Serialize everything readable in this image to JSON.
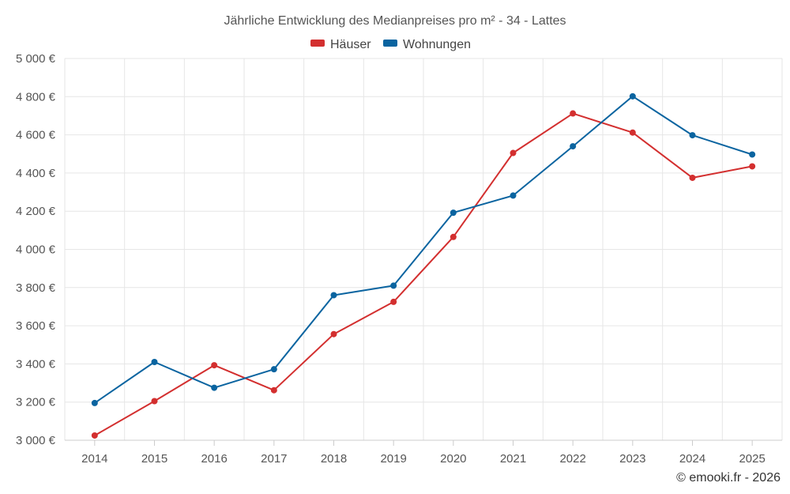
{
  "chart_data": {
    "type": "line",
    "title": "Jährliche Entwicklung des Medianpreises pro m² - 34 - Lattes",
    "categories": [
      "2014",
      "2015",
      "2016",
      "2017",
      "2018",
      "2019",
      "2020",
      "2021",
      "2022",
      "2023",
      "2024",
      "2025"
    ],
    "series": [
      {
        "name": "Häuser",
        "color": "#d32f2f",
        "values": [
          3025,
          3205,
          3393,
          3262,
          3556,
          3725,
          4065,
          4505,
          4712,
          4612,
          4375,
          4435
        ]
      },
      {
        "name": "Wohnungen",
        "color": "#0a64a0",
        "values": [
          3195,
          3410,
          3275,
          3372,
          3760,
          3810,
          4192,
          4282,
          4540,
          4802,
          4598,
          4497
        ]
      }
    ],
    "yticks": [
      3000,
      3200,
      3400,
      3600,
      3800,
      4000,
      4200,
      4400,
      4600,
      4800,
      5000
    ],
    "ytick_labels": [
      "3 000 €",
      "3 200 €",
      "3 400 €",
      "3 600 €",
      "3 800 €",
      "4 000 €",
      "4 200 €",
      "4 400 €",
      "4 600 €",
      "4 800 €",
      "5 000 €"
    ],
    "ylim": [
      3000,
      5000
    ],
    "legend_position": "top-center",
    "grid": true,
    "credit": "© emooki.fr - 2026"
  }
}
